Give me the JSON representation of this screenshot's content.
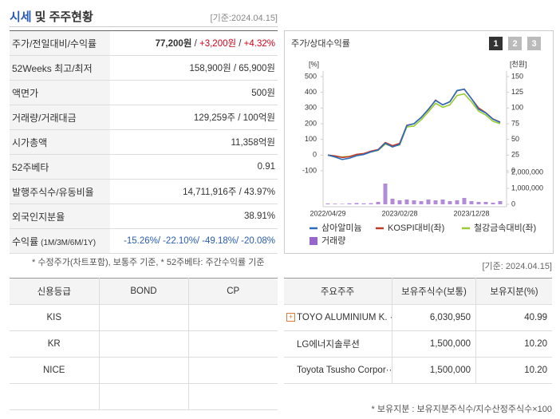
{
  "header": {
    "title": "시세",
    "title_rest": "및 주주현황",
    "date": "[기준:2024.04.15]"
  },
  "price_table": {
    "rows": [
      {
        "label": "주가/전일대비/수익률",
        "value": [
          "77,200원",
          " / ",
          "+3,200원",
          " / ",
          "+4.32%"
        ]
      },
      {
        "label": "52Weeks 최고/최저",
        "value": [
          "158,900원 / 65,900원"
        ]
      },
      {
        "label": "액면가",
        "value": [
          "500원"
        ]
      },
      {
        "label": "거래량/거래대금",
        "value": [
          "129,259주 / 100억원"
        ]
      },
      {
        "label": "시가총액",
        "value": [
          "11,358억원"
        ]
      },
      {
        "label": "52주베타",
        "value": [
          "0.91"
        ]
      },
      {
        "label": "발행주식수/유동비율",
        "value": [
          "14,711,916주 / 43.97%"
        ]
      },
      {
        "label": "외국인지분율",
        "value": [
          "38.91%"
        ]
      },
      {
        "label": "수익률",
        "label_note": "(1M/3M/6M/1Y)",
        "value": [
          "-15.26%/",
          "-22.10%/",
          "-49.18%/",
          "-20.08%"
        ]
      }
    ],
    "note": "* 수정주가(차트포함), 보통주 기준, * 52주베타: 주간수익률 기준"
  },
  "chart_data": {
    "type": "line",
    "title": "주가/상대수익률",
    "tabs": [
      "1",
      "2",
      "3"
    ],
    "y_unit": "[%]",
    "y2_unit": "[천원]",
    "categories": [
      "2022/04/29",
      null,
      null,
      null,
      null,
      null,
      null,
      null,
      null,
      null,
      "2023/02/28",
      null,
      null,
      null,
      null,
      null,
      null,
      null,
      null,
      null,
      "2023/12/28",
      null,
      null,
      null,
      null
    ],
    "ylim": [
      -100,
      500
    ],
    "yticks": [
      -100,
      0,
      100,
      200,
      300,
      400,
      500
    ],
    "y2lim": [
      0,
      150
    ],
    "y2ticks": [
      0,
      25,
      50,
      75,
      100,
      125,
      150
    ],
    "y3lim": [
      0,
      2000000
    ],
    "y3ticks": [
      0,
      {
        "value": 1000000,
        "label": "1,000,000"
      },
      {
        "value": 2000000,
        "label": "2,000,000"
      }
    ],
    "series": [
      {
        "name": "삼아알미늄",
        "color": "#2a6ebb",
        "axis": "y2",
        "values": [
          25,
          22,
          18,
          20,
          24,
          26,
          30,
          33,
          44,
          38,
          42,
          72,
          75,
          85,
          98,
          112,
          105,
          110,
          128,
          130,
          115,
          98,
          92,
          82,
          77
        ]
      },
      {
        "name": "KOSPI대비(좌)",
        "color": "#c0392b",
        "values": [
          0,
          -5,
          -15,
          -10,
          5,
          10,
          25,
          35,
          80,
          60,
          75,
          190,
          200,
          240,
          290,
          350,
          320,
          340,
          410,
          420,
          360,
          300,
          270,
          230,
          210
        ]
      },
      {
        "name": "철강금속대비(좌)",
        "color": "#9acd32",
        "values": [
          0,
          -8,
          -12,
          -8,
          0,
          8,
          20,
          30,
          70,
          55,
          65,
          180,
          185,
          225,
          275,
          330,
          305,
          320,
          380,
          390,
          340,
          280,
          255,
          215,
          200
        ]
      },
      {
        "name": "거래량",
        "color": "#9966cc",
        "type": "bar",
        "axis": "y3",
        "values": [
          50000,
          40000,
          30000,
          60000,
          80000,
          60000,
          70000,
          150000,
          1300000,
          350000,
          250000,
          300000,
          250000,
          200000,
          300000,
          250000,
          300000,
          200000,
          250000,
          400000,
          200000,
          150000,
          150000,
          100000,
          200000
        ]
      }
    ]
  },
  "rating_table": {
    "columns": [
      "신용등급",
      "BOND",
      "CP"
    ],
    "rows": [
      [
        "KIS"
      ],
      [
        "KR"
      ],
      [
        "NICE"
      ]
    ]
  },
  "holder_table": {
    "date": "[기준: 2024.04.15]",
    "columns": [
      "주요주주",
      "보유주식수(보통)",
      "보유지분(%)"
    ],
    "rows": [
      [
        "TOYO ALUMINIUM K. ···",
        "6,030,950",
        "40.99"
      ],
      [
        "LG에너지솔루션",
        "1,500,000",
        "10.20"
      ],
      [
        "Toyota Tsusho Corpor···",
        "1,500,000",
        "10.20"
      ]
    ],
    "note": "* 보유지분 : 보유지분주식수/지수산정주식수×100"
  }
}
